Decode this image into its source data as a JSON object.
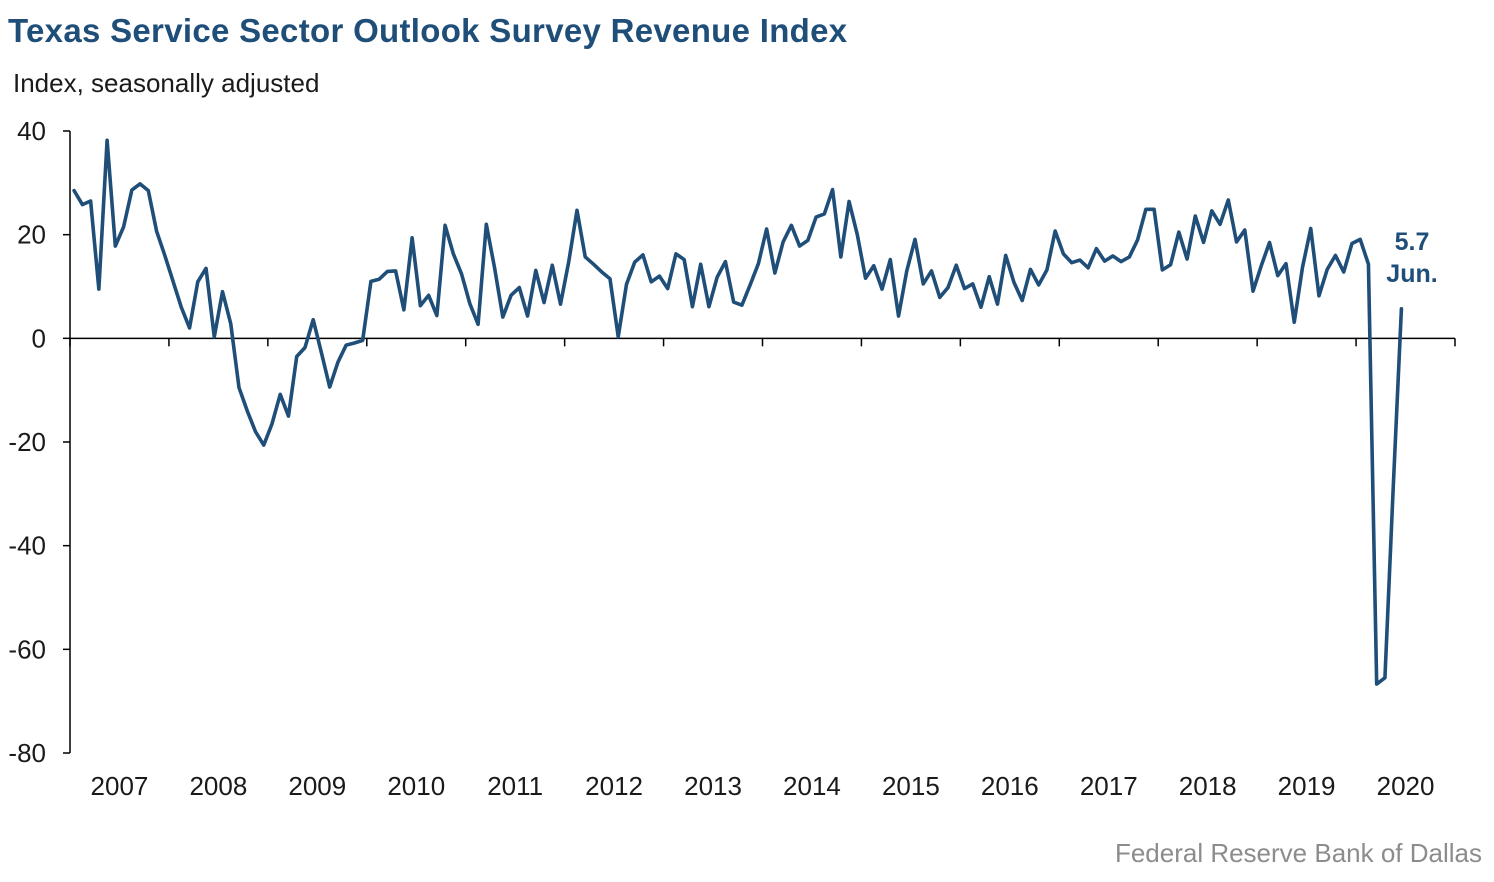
{
  "title": "Texas Service Sector Outlook Survey Revenue Index",
  "subtitle": "Index, seasonally adjusted",
  "source": "Federal Reserve Bank of Dallas",
  "colors": {
    "line": "#1f4e79",
    "title": "#1f4e79",
    "axis": "#000000",
    "source": "#8c8c8c"
  },
  "chart_data": {
    "type": "line",
    "title": "Texas Service Sector Outlook Survey Revenue Index",
    "ylabel": "Index, seasonally adjusted",
    "xlabel": "",
    "ylim": [
      -80,
      40
    ],
    "yticks": [
      "40",
      "20",
      "0",
      "-20",
      "-40",
      "-60",
      "-80"
    ],
    "xticks": [
      "2007",
      "2008",
      "2009",
      "2010",
      "2011",
      "2012",
      "2013",
      "2014",
      "2015",
      "2016",
      "2017",
      "2018",
      "2019",
      "2020"
    ],
    "x_range": [
      "2006-07",
      "2020-06"
    ],
    "grid": false,
    "annotation": {
      "value": "5.7",
      "label": "Jun."
    },
    "series": [
      {
        "values": [
          28.5,
          25.8,
          26.5,
          9.5,
          38.2,
          17.8,
          21.5,
          28.6,
          29.8,
          28.5,
          20.7,
          16.0,
          11.0,
          6.0,
          2.0,
          10.9,
          13.5,
          0.3,
          9.0,
          2.8,
          -9.5,
          -14.0,
          -18.0,
          -20.6,
          -16.5,
          -10.8,
          -15.0,
          -3.5,
          -1.8,
          3.6,
          -2.8,
          -9.4,
          -4.6,
          -1.3,
          -0.9,
          -0.4,
          11.0,
          11.4,
          12.9,
          13.0,
          5.5,
          19.4,
          6.3,
          8.3,
          4.4,
          21.8,
          16.3,
          12.4,
          6.7,
          2.7,
          22.0,
          13.6,
          4.1,
          8.3,
          9.8,
          4.3,
          13.1,
          6.9,
          14.1,
          6.6,
          14.8,
          24.7,
          15.7,
          14.3,
          12.8,
          11.5,
          0.3,
          10.4,
          14.7,
          16.1,
          10.9,
          12.0,
          9.6,
          16.3,
          15.2,
          6.1,
          14.3,
          6.1,
          11.8,
          14.8,
          7.0,
          6.4,
          10.3,
          14.4,
          21.1,
          12.6,
          18.6,
          21.8,
          17.8,
          18.9,
          23.4,
          24.0,
          28.7,
          15.7,
          26.4,
          20.0,
          11.6,
          14.0,
          9.5,
          15.2,
          4.3,
          13.0,
          19.1,
          10.5,
          13.0,
          7.9,
          9.8,
          14.1,
          9.6,
          10.5,
          6.0,
          11.9,
          6.6,
          16.0,
          10.8,
          7.3,
          13.3,
          10.3,
          13.2,
          20.7,
          16.3,
          14.6,
          15.1,
          13.6,
          17.3,
          14.9,
          15.9,
          14.8,
          15.7,
          19.0,
          24.9,
          24.9,
          13.2,
          14.2,
          20.5,
          15.3,
          23.6,
          18.5,
          24.6,
          22.0,
          26.7,
          18.6,
          20.9,
          9.1,
          14.0,
          18.5,
          12.1,
          14.4,
          3.1,
          13.7,
          21.2,
          8.2,
          13.3,
          16.0,
          12.8,
          18.3,
          19.1,
          14.3,
          -66.7,
          -65.5,
          -29.0,
          5.7
        ]
      }
    ]
  }
}
